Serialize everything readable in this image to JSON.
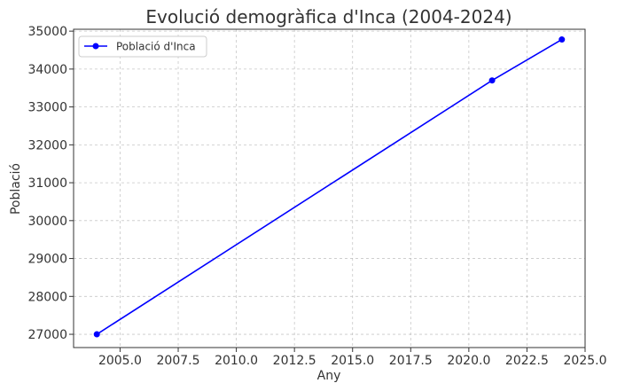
{
  "chart_data": {
    "type": "line",
    "title": "Evolució demogràfica d'Inca (2004-2024)",
    "xlabel": "Any",
    "ylabel": "Població",
    "xlim": [
      2003.0,
      2025.0
    ],
    "ylim": [
      26650,
      35050
    ],
    "xticks": [
      2005.0,
      2007.5,
      2010.0,
      2012.5,
      2015.0,
      2017.5,
      2020.0,
      2022.5,
      2025.0
    ],
    "xtick_labels": [
      "2005.0",
      "2007.5",
      "2010.0",
      "2012.5",
      "2015.0",
      "2017.5",
      "2020.0",
      "2022.5",
      "2025.0"
    ],
    "yticks": [
      27000,
      28000,
      29000,
      30000,
      31000,
      32000,
      33000,
      34000,
      35000
    ],
    "ytick_labels": [
      "27000",
      "28000",
      "29000",
      "30000",
      "31000",
      "32000",
      "33000",
      "34000",
      "35000"
    ],
    "grid": true,
    "legend_position": "top-left",
    "series": [
      {
        "name": "Població d'Inca",
        "color": "#0000ff",
        "marker": "circle",
        "x": [
          2004,
          2021,
          2024
        ],
        "y": [
          27000,
          33700,
          34780
        ]
      }
    ]
  }
}
